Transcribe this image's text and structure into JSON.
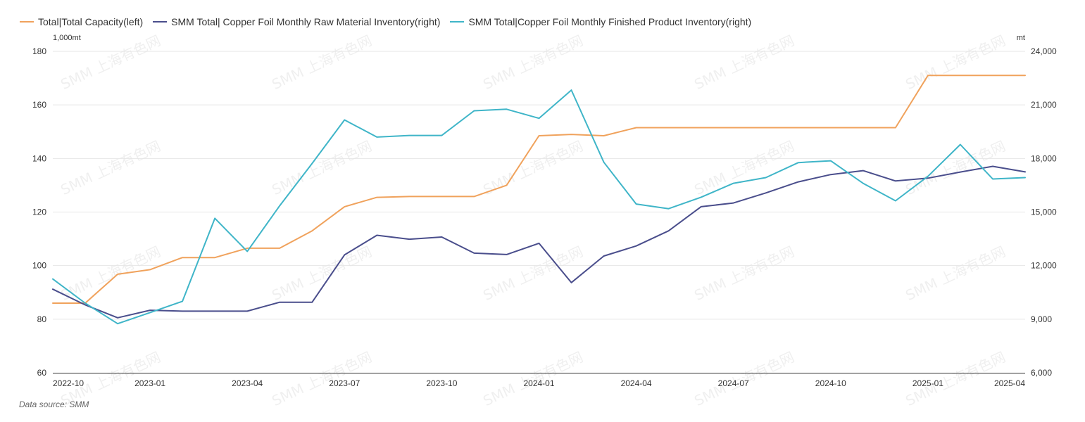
{
  "legend": [
    {
      "label": "Total|Total Capacity(left)",
      "color": "#F0A25C"
    },
    {
      "label": "SMM Total| Copper Foil Monthly Raw Material Inventory(right)",
      "color": "#4A4E8C"
    },
    {
      "label": "SMM Total|Copper Foil Monthly Finished Product Inventory(right)",
      "color": "#3FB5C8"
    }
  ],
  "axis_units": {
    "left": "1,000mt",
    "right": "mt"
  },
  "source": "Data source:  SMM",
  "watermark": "SMM 上海有色网",
  "chart_data": {
    "type": "line",
    "title": "",
    "x": [
      "2022-10",
      "2022-11",
      "2022-12",
      "2023-01",
      "2023-02",
      "2023-03",
      "2023-04",
      "2023-05",
      "2023-06",
      "2023-07",
      "2023-08",
      "2023-09",
      "2023-10",
      "2023-11",
      "2023-12",
      "2024-01",
      "2024-02",
      "2024-03",
      "2024-04",
      "2024-05",
      "2024-06",
      "2024-07",
      "2024-08",
      "2024-09",
      "2024-10",
      "2024-11",
      "2024-12",
      "2025-01",
      "2025-02",
      "2025-03",
      "2025-04"
    ],
    "x_tick_labels": [
      "2022-10",
      "2023-01",
      "2023-04",
      "2023-07",
      "2023-10",
      "2024-01",
      "2024-04",
      "2024-07",
      "2024-10",
      "2025-01",
      "2025-04"
    ],
    "left_axis": {
      "min": 60,
      "max": 180,
      "ticks": [
        "60",
        "80",
        "100",
        "120",
        "140",
        "160",
        "180"
      ]
    },
    "right_axis": {
      "min": 6000,
      "max": 24000,
      "ticks": [
        "6,000",
        "9,000",
        "12,000",
        "15,000",
        "18,000",
        "21,000",
        "24,000"
      ]
    },
    "grid": true,
    "legend_position": "top-left",
    "series": [
      {
        "name": "Total|Total Capacity(left)",
        "axis": "left",
        "color": "#F0A25C",
        "values": [
          86,
          86,
          96.8,
          98.5,
          103,
          103,
          106.5,
          106.5,
          113,
          122,
          125.5,
          125.8,
          125.8,
          125.8,
          130,
          148.5,
          149,
          148.5,
          151.5,
          151.5,
          151.5,
          151.5,
          151.5,
          151.5,
          151.5,
          151.5,
          151.5,
          171,
          171,
          171,
          171
        ]
      },
      {
        "name": "SMM Total| Copper Foil Monthly Raw Material Inventory(right)",
        "axis": "right",
        "color": "#4A4E8C",
        "values": [
          10680,
          9800,
          9080,
          9500,
          9450,
          9450,
          9450,
          9950,
          9950,
          12600,
          13700,
          13480,
          13600,
          12700,
          12620,
          13250,
          11050,
          12540,
          13100,
          13950,
          15300,
          15510,
          16070,
          16690,
          17100,
          17320,
          16740,
          16900,
          17240,
          17560,
          17250
        ]
      },
      {
        "name": "SMM Total|Copper Foil Monthly Finished Product Inventory(right)",
        "axis": "right",
        "color": "#3FB5C8",
        "values": [
          11250,
          9900,
          8750,
          9370,
          10000,
          14650,
          12800,
          15350,
          17720,
          20160,
          19200,
          19290,
          19290,
          20670,
          20760,
          20250,
          21830,
          17790,
          15450,
          15190,
          15830,
          16610,
          16930,
          17770,
          17870,
          16610,
          15630,
          17000,
          18780,
          16850,
          16930
        ]
      }
    ]
  }
}
